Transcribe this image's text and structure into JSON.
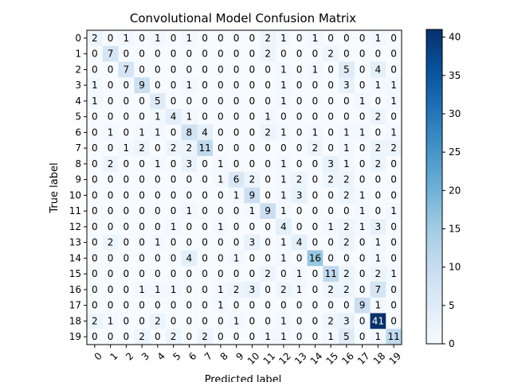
{
  "chart_data": {
    "type": "heatmap",
    "title": "Convolutional Model Confusion Matrix",
    "xlabel": "Predicted label",
    "ylabel": "True label",
    "x_tick_labels": [
      "0",
      "1",
      "2",
      "3",
      "4",
      "5",
      "6",
      "7",
      "8",
      "9",
      "10",
      "11",
      "12",
      "13",
      "14",
      "15",
      "16",
      "17",
      "18",
      "19"
    ],
    "y_tick_labels": [
      "0",
      "1",
      "2",
      "3",
      "4",
      "5",
      "6",
      "7",
      "8",
      "9",
      "10",
      "11",
      "12",
      "13",
      "14",
      "15",
      "16",
      "17",
      "18",
      "19"
    ],
    "colormap": "Blues",
    "colorbar": {
      "range": [
        0,
        41
      ],
      "ticks": [
        "0",
        "5",
        "10",
        "15",
        "20",
        "25",
        "30",
        "35",
        "40"
      ]
    },
    "matrix": [
      [
        2,
        0,
        1,
        0,
        1,
        0,
        1,
        0,
        0,
        0,
        0,
        2,
        1,
        0,
        1,
        0,
        0,
        0,
        1,
        0
      ],
      [
        0,
        7,
        0,
        0,
        0,
        0,
        0,
        0,
        0,
        0,
        0,
        2,
        0,
        0,
        0,
        2,
        0,
        0,
        0,
        0
      ],
      [
        0,
        0,
        7,
        0,
        0,
        0,
        0,
        0,
        0,
        0,
        0,
        0,
        1,
        0,
        1,
        0,
        5,
        0,
        4,
        0
      ],
      [
        1,
        0,
        0,
        9,
        0,
        0,
        1,
        0,
        0,
        0,
        0,
        0,
        1,
        0,
        0,
        0,
        3,
        0,
        1,
        1
      ],
      [
        1,
        0,
        0,
        0,
        5,
        0,
        0,
        0,
        0,
        0,
        0,
        0,
        1,
        0,
        0,
        0,
        0,
        1,
        0,
        1
      ],
      [
        0,
        0,
        0,
        0,
        1,
        4,
        1,
        0,
        0,
        0,
        0,
        1,
        0,
        0,
        0,
        0,
        0,
        0,
        2,
        0
      ],
      [
        0,
        1,
        0,
        1,
        1,
        0,
        8,
        4,
        0,
        0,
        0,
        2,
        1,
        0,
        1,
        0,
        1,
        1,
        0,
        1
      ],
      [
        0,
        0,
        1,
        2,
        0,
        2,
        2,
        11,
        0,
        0,
        0,
        0,
        0,
        0,
        2,
        0,
        1,
        0,
        2,
        2
      ],
      [
        0,
        2,
        0,
        0,
        1,
        0,
        3,
        0,
        1,
        0,
        0,
        0,
        1,
        0,
        0,
        3,
        1,
        0,
        2,
        0
      ],
      [
        0,
        0,
        0,
        0,
        0,
        0,
        0,
        0,
        1,
        6,
        2,
        0,
        1,
        2,
        0,
        2,
        2,
        0,
        0,
        0
      ],
      [
        0,
        0,
        0,
        0,
        0,
        0,
        0,
        0,
        0,
        1,
        9,
        0,
        1,
        3,
        0,
        0,
        2,
        1,
        0,
        0
      ],
      [
        0,
        0,
        0,
        0,
        0,
        0,
        1,
        0,
        0,
        0,
        1,
        9,
        1,
        0,
        0,
        0,
        0,
        1,
        0,
        1
      ],
      [
        0,
        0,
        0,
        0,
        0,
        1,
        0,
        0,
        1,
        0,
        0,
        0,
        4,
        0,
        0,
        1,
        2,
        1,
        3,
        0
      ],
      [
        0,
        2,
        0,
        0,
        1,
        0,
        0,
        0,
        0,
        0,
        3,
        0,
        1,
        4,
        0,
        0,
        2,
        0,
        1,
        0
      ],
      [
        0,
        0,
        0,
        0,
        0,
        0,
        4,
        0,
        0,
        1,
        0,
        0,
        1,
        0,
        16,
        0,
        0,
        0,
        1,
        0
      ],
      [
        0,
        0,
        0,
        0,
        0,
        0,
        0,
        0,
        0,
        0,
        0,
        2,
        0,
        1,
        0,
        11,
        2,
        0,
        2,
        1
      ],
      [
        0,
        0,
        0,
        1,
        1,
        1,
        0,
        0,
        1,
        2,
        3,
        0,
        2,
        1,
        0,
        2,
        2,
        0,
        7,
        0
      ],
      [
        0,
        0,
        0,
        0,
        0,
        0,
        0,
        0,
        1,
        0,
        0,
        0,
        0,
        0,
        0,
        0,
        0,
        9,
        1,
        0
      ],
      [
        2,
        1,
        0,
        0,
        2,
        0,
        0,
        0,
        0,
        1,
        0,
        0,
        1,
        0,
        0,
        2,
        3,
        0,
        41,
        0
      ],
      [
        0,
        0,
        0,
        2,
        0,
        2,
        0,
        2,
        0,
        0,
        0,
        1,
        1,
        0,
        0,
        1,
        5,
        0,
        1,
        11
      ]
    ]
  }
}
